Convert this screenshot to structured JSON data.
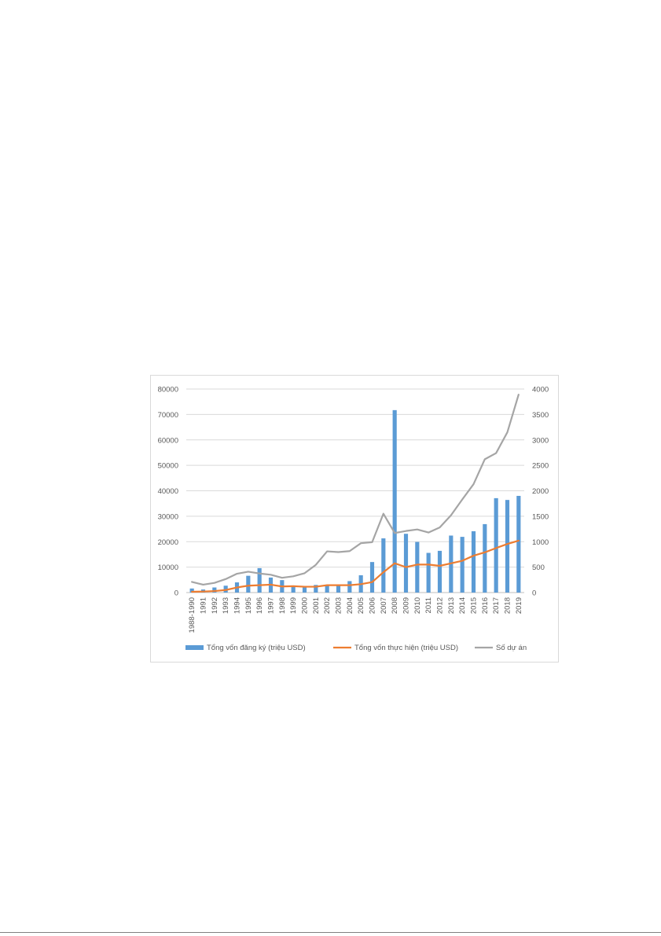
{
  "chart_data": {
    "type": "bar",
    "title": "",
    "xlabel": "",
    "ylabel": "",
    "categories": [
      "1988-1990",
      "1991",
      "1992",
      "1993",
      "1994",
      "1995",
      "1996",
      "1997",
      "1998",
      "1999",
      "2000",
      "2001",
      "2002",
      "2003",
      "2004",
      "2005",
      "2006",
      "2007",
      "2008",
      "2009",
      "2010",
      "2011",
      "2012",
      "2013",
      "2014",
      "2015",
      "2016",
      "2017",
      "2018",
      "2019"
    ],
    "ylim": [
      0,
      80000
    ],
    "y2lim": [
      0,
      4000
    ],
    "y_ticks": [
      "0",
      "10000",
      "20000",
      "30000",
      "40000",
      "50000",
      "60000",
      "70000",
      "80000"
    ],
    "y2_ticks": [
      "0",
      "500",
      "1000",
      "1500",
      "2000",
      "2500",
      "3000",
      "3500",
      "4000"
    ],
    "grid": true,
    "legend_position": "bottom",
    "series": [
      {
        "name": "Tổng vốn đăng ký (triệu USD)",
        "type": "bar",
        "axis": "left",
        "color": "#5b9bd5",
        "values": [
          1600,
          1200,
          2000,
          2700,
          4000,
          6600,
          9600,
          5900,
          4900,
          2400,
          2400,
          3000,
          2800,
          3100,
          4500,
          6800,
          12000,
          21300,
          71700,
          23100,
          19900,
          15600,
          16400,
          22400,
          21900,
          24100,
          26900,
          37100,
          36400,
          38000
        ]
      },
      {
        "name": "Tổng vốn thực hiện (triệu USD)",
        "type": "line",
        "axis": "left",
        "color": "#ed7d31",
        "values": [
          300,
          400,
          600,
          1000,
          2000,
          2700,
          2900,
          3100,
          2400,
          2500,
          2300,
          2300,
          2900,
          2900,
          2900,
          3300,
          4100,
          8000,
          11500,
          10000,
          11000,
          11000,
          10500,
          11500,
          12500,
          14500,
          15800,
          17500,
          19100,
          20400
        ]
      },
      {
        "name": "Số dự án",
        "type": "line",
        "axis": "right",
        "color": "#a5a5a5",
        "values": [
          210,
          155,
          190,
          265,
          370,
          410,
          375,
          350,
          290,
          320,
          380,
          545,
          810,
          795,
          815,
          970,
          990,
          1550,
          1170,
          1210,
          1240,
          1180,
          1280,
          1520,
          1830,
          2130,
          2620,
          2740,
          3150,
          3890
        ]
      }
    ]
  }
}
